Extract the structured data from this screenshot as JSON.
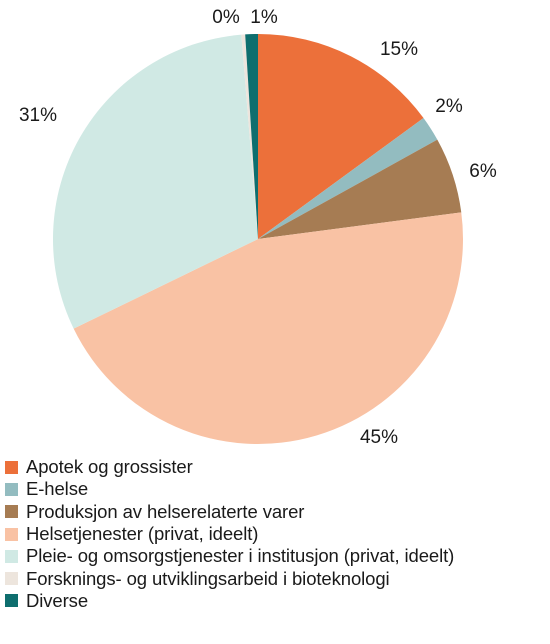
{
  "chart_data": {
    "type": "pie",
    "title": "",
    "start": "top",
    "direction": "clockwise",
    "legend_position": "bottom-left",
    "slices": [
      {
        "label": "Apotek og grossister",
        "value": 15,
        "value_label": "15%",
        "color": "#ec703a"
      },
      {
        "label": "E-helse",
        "value": 2,
        "value_label": "2%",
        "color": "#93bcc0"
      },
      {
        "label": "Produksjon av helserelaterte varer",
        "value": 6,
        "value_label": "6%",
        "color": "#a67c53"
      },
      {
        "label": "Helsetjenester (privat, ideelt)",
        "value": 45,
        "value_label": "45%",
        "color": "#f9c2a4"
      },
      {
        "label": "Pleie- og omsorgstjenester i institusjon (privat, ideelt)",
        "value": 31,
        "value_label": "31%",
        "color": "#d0e9e4"
      },
      {
        "label": "Forsknings- og utviklingsarbeid i bioteknologi",
        "value": 0.3,
        "value_label": "0%",
        "color": "#ede5dd"
      },
      {
        "label": "Diverse",
        "value": 1,
        "value_label": "1%",
        "color": "#0e6e6e"
      }
    ]
  }
}
